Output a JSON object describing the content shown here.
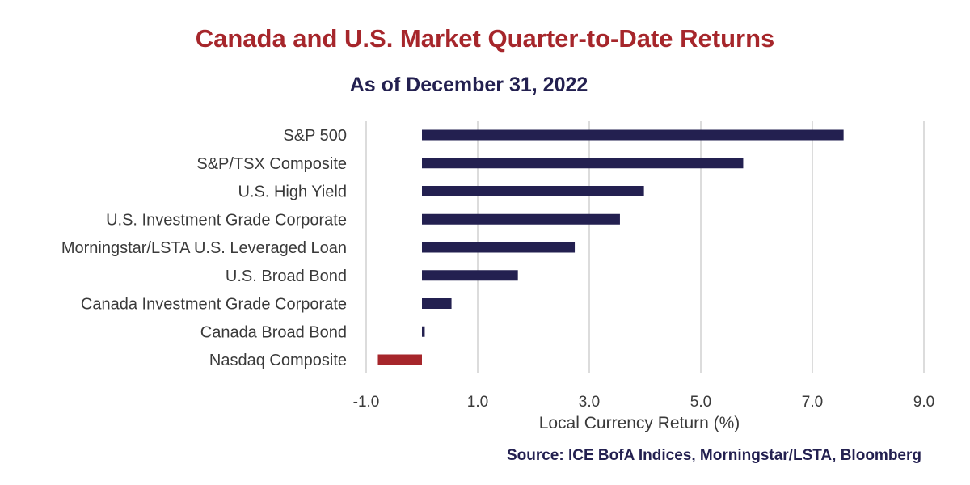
{
  "title": "Canada and U.S. Market Quarter-to-Date Returns",
  "subtitle": "As of December 31, 2022",
  "source": "Source: ICE BofA Indices, Morningstar/LSTA, Bloomberg",
  "colors": {
    "positive": "#232050",
    "negative": "#a6262b",
    "title": "#a6262b",
    "subtitle": "#232050"
  },
  "chart_data": {
    "type": "bar",
    "orientation": "horizontal",
    "categories": [
      "S&P 500",
      "S&P/TSX Composite",
      "U.S. High Yield",
      "U.S. Investment Grade Corporate",
      "Morningstar/LSTA U.S. Leveraged Loan",
      "U.S. Broad Bond",
      "Canada Investment Grade Corporate",
      "Canada Broad Bond",
      "Nasdaq Composite"
    ],
    "values": [
      7.56,
      5.76,
      3.98,
      3.55,
      2.74,
      1.72,
      0.53,
      0.05,
      -0.79
    ],
    "xlabel": "Local Currency Return (%)",
    "ylabel": "",
    "xlim": [
      -1.0,
      9.0
    ],
    "xticks": [
      -1.0,
      1.0,
      3.0,
      5.0,
      7.0,
      9.0
    ],
    "xtick_labels": [
      "-1.0",
      "1.0",
      "3.0",
      "5.0",
      "7.0",
      "9.0"
    ],
    "grid": "vertical",
    "legend": "none"
  }
}
